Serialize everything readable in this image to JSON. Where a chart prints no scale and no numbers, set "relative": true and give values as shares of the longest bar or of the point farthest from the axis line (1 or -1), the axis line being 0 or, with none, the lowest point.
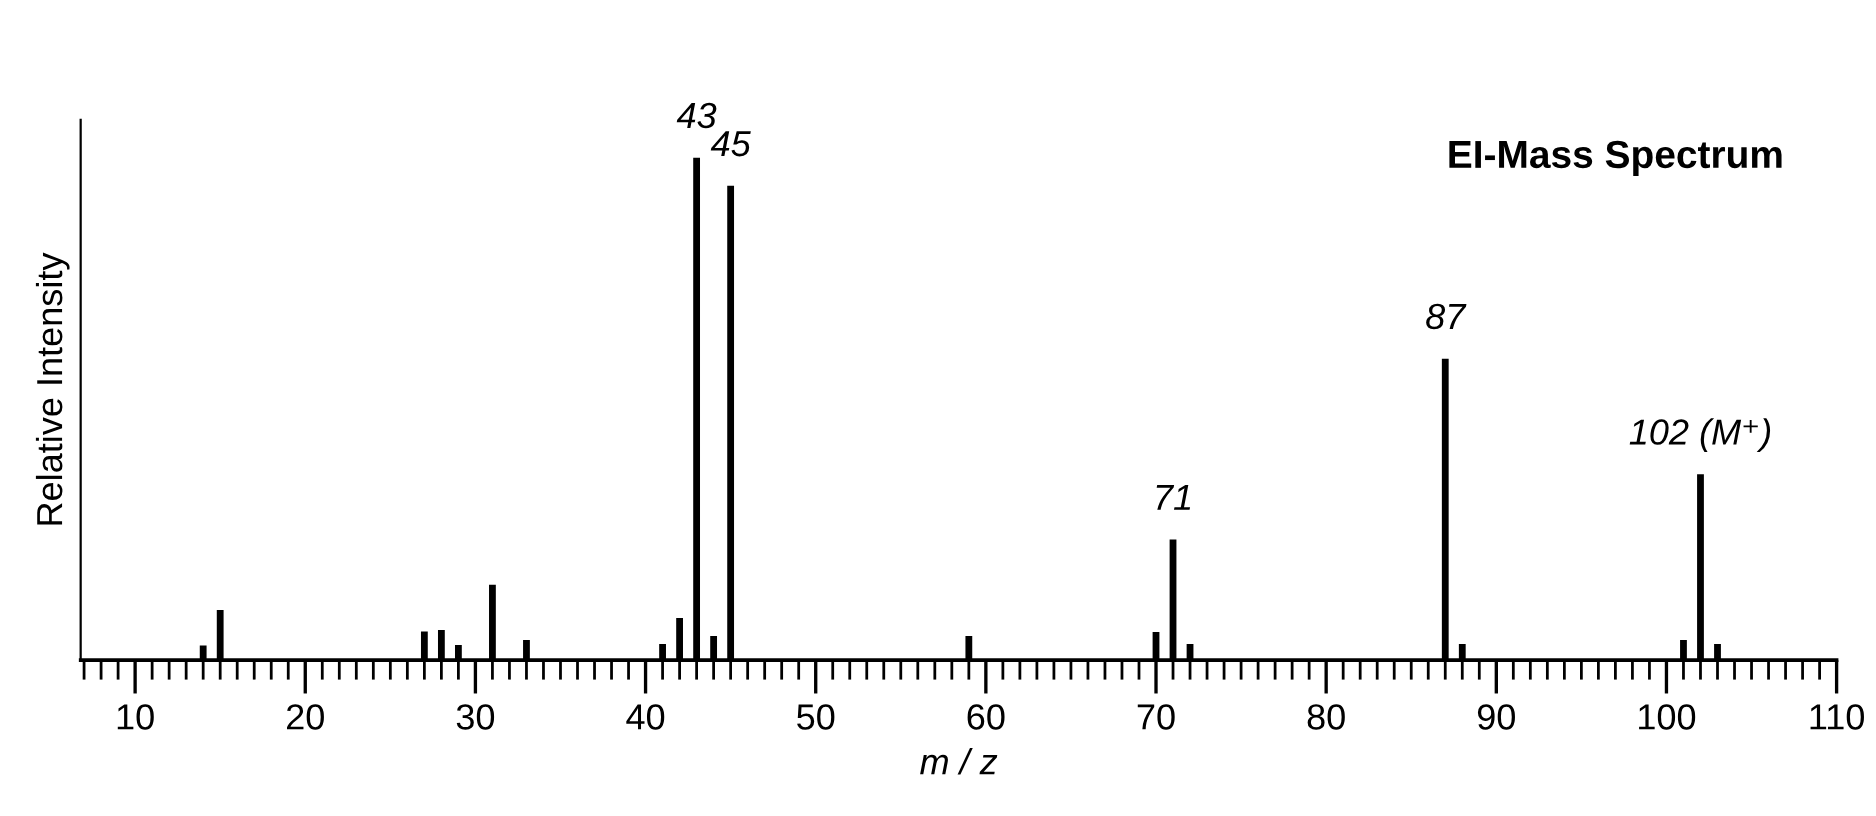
{
  "chart_data": {
    "type": "bar",
    "title": "EI-Mass Spectrum",
    "xlabel": "m / z",
    "ylabel": "Relative Intensity",
    "relative": true,
    "color": "#000000",
    "x": [
      14,
      15,
      27,
      28,
      29,
      31,
      33,
      41,
      42,
      43,
      44,
      45,
      59,
      70,
      71,
      72,
      87,
      88,
      101,
      102,
      103
    ],
    "values": [
      0.029,
      0.1,
      0.057,
      0.06,
      0.03,
      0.15,
      0.04,
      0.032,
      0.084,
      1,
      0.048,
      0.944,
      0.048,
      0.056,
      0.24,
      0.032,
      0.6,
      0.032,
      0.04,
      0.37,
      0.032
    ],
    "xlim": [
      6.8,
      110
    ],
    "xticks": [
      10,
      20,
      30,
      40,
      50,
      60,
      70,
      80,
      90,
      100,
      110
    ],
    "annotations": [
      {
        "text": "43",
        "x": 43,
        "y": 1
      },
      {
        "text": "45",
        "x": 45,
        "y": 0.944
      },
      {
        "text": "71",
        "x": 71,
        "y": 0.24
      },
      {
        "text": "87",
        "x": 87,
        "y": 0.6
      },
      {
        "text": "102 (M⁺)",
        "x": 102,
        "y": 0.37
      }
    ]
  }
}
